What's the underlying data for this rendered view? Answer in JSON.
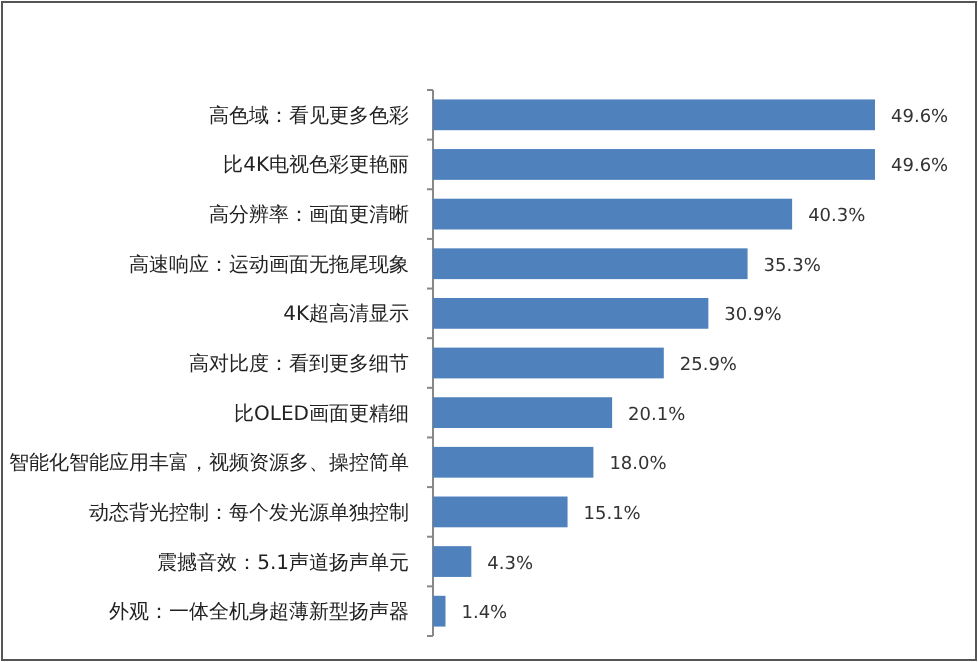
{
  "chart_data": {
    "type": "bar",
    "orientation": "horizontal",
    "categories": [
      "高色域：看见更多色彩",
      "比4K电视色彩更艳丽",
      "高分辨率：画面更清晰",
      "高速响应：运动画面无拖尾现象",
      "4K超高清显示",
      "高对比度：看到更多细节",
      "比OLED画面更精细",
      "智能化智能应用丰富，视频资源多、操控简单",
      "动态背光控制：每个发光源单独控制",
      "震撼音效：5.1声道扬声单元",
      "外观：一体全机身超薄新型扬声器"
    ],
    "values": [
      49.6,
      49.6,
      40.3,
      35.3,
      30.9,
      25.9,
      20.1,
      18.0,
      15.1,
      4.3,
      1.4
    ],
    "value_labels": [
      "49.6%",
      "49.6%",
      "40.3%",
      "35.3%",
      "30.9%",
      "25.9%",
      "20.1%",
      "18.0%",
      "15.1%",
      "4.3%",
      "1.4%"
    ],
    "color": "#4f81bd"
  }
}
